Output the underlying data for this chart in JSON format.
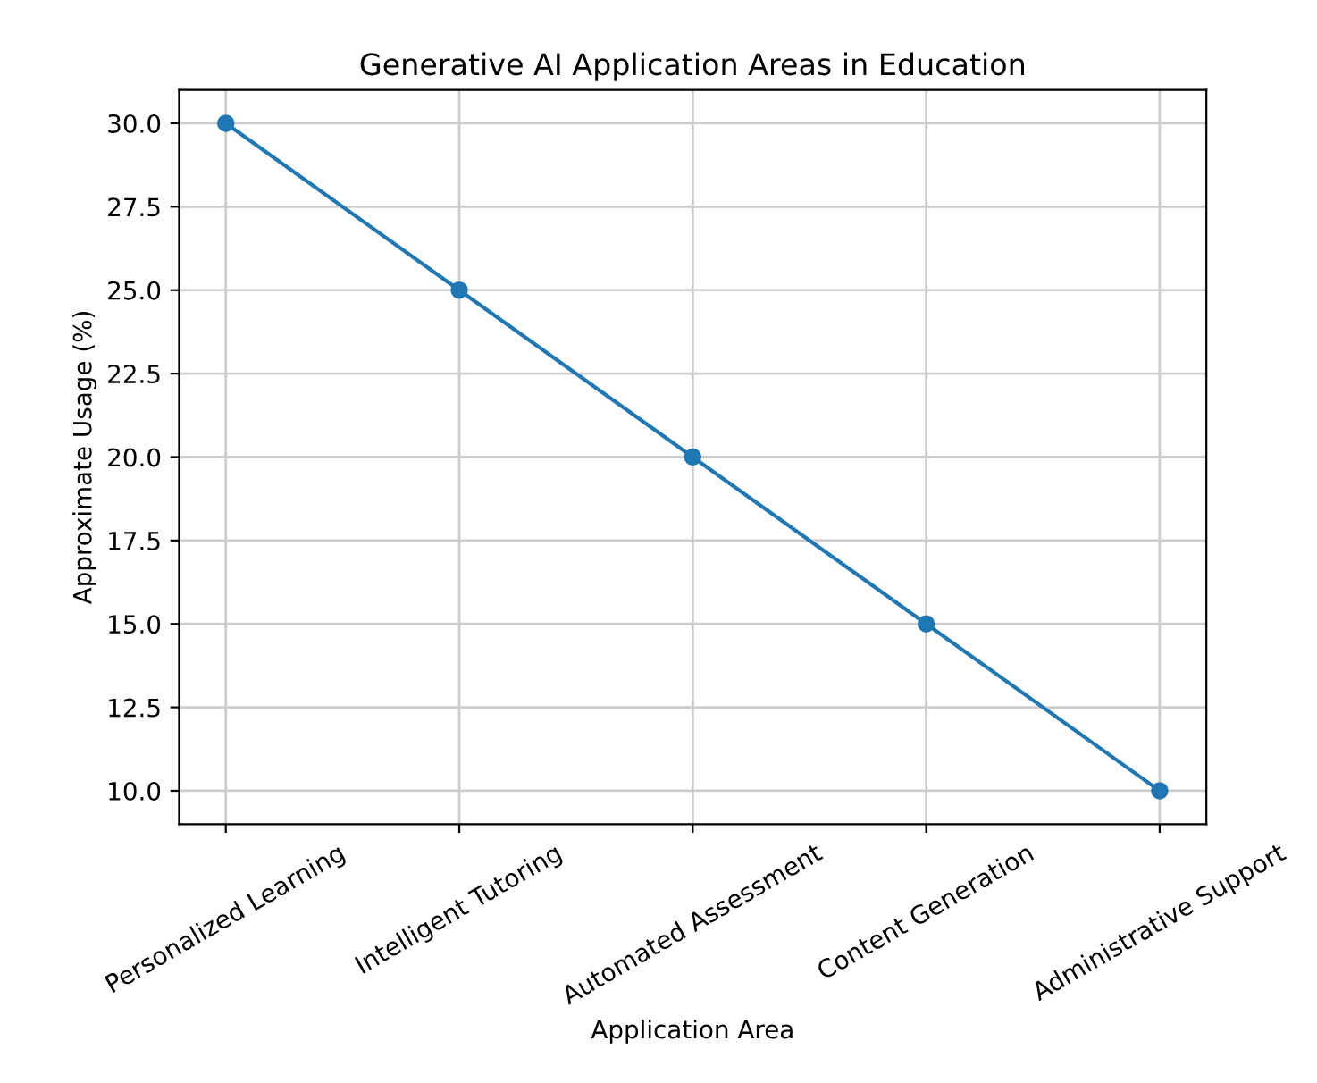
{
  "chart_data": {
    "type": "line",
    "title": "Generative AI Application Areas in Education",
    "xlabel": "Application Area",
    "ylabel": "Approximate Usage (%)",
    "categories": [
      "Personalized Learning",
      "Intelligent Tutoring",
      "Automated Assessment",
      "Content Generation",
      "Administrative Support"
    ],
    "series": [
      {
        "color": "#1f77b4",
        "values": [
          30,
          25,
          20,
          15,
          10
        ]
      }
    ],
    "ylim": [
      9,
      31
    ],
    "yticks": [
      {
        "value": 10,
        "label": "10.0"
      },
      {
        "value": 12.5,
        "label": "12.5"
      },
      {
        "value": 15,
        "label": "15.0"
      },
      {
        "value": 17.5,
        "label": "17.5"
      },
      {
        "value": 20,
        "label": "20.0"
      },
      {
        "value": 22.5,
        "label": "22.5"
      },
      {
        "value": 25,
        "label": "25.0"
      },
      {
        "value": 27.5,
        "label": "27.5"
      },
      {
        "value": 30,
        "label": "30.0"
      }
    ],
    "grid": true,
    "marker": "circle",
    "line_style": "solid"
  }
}
